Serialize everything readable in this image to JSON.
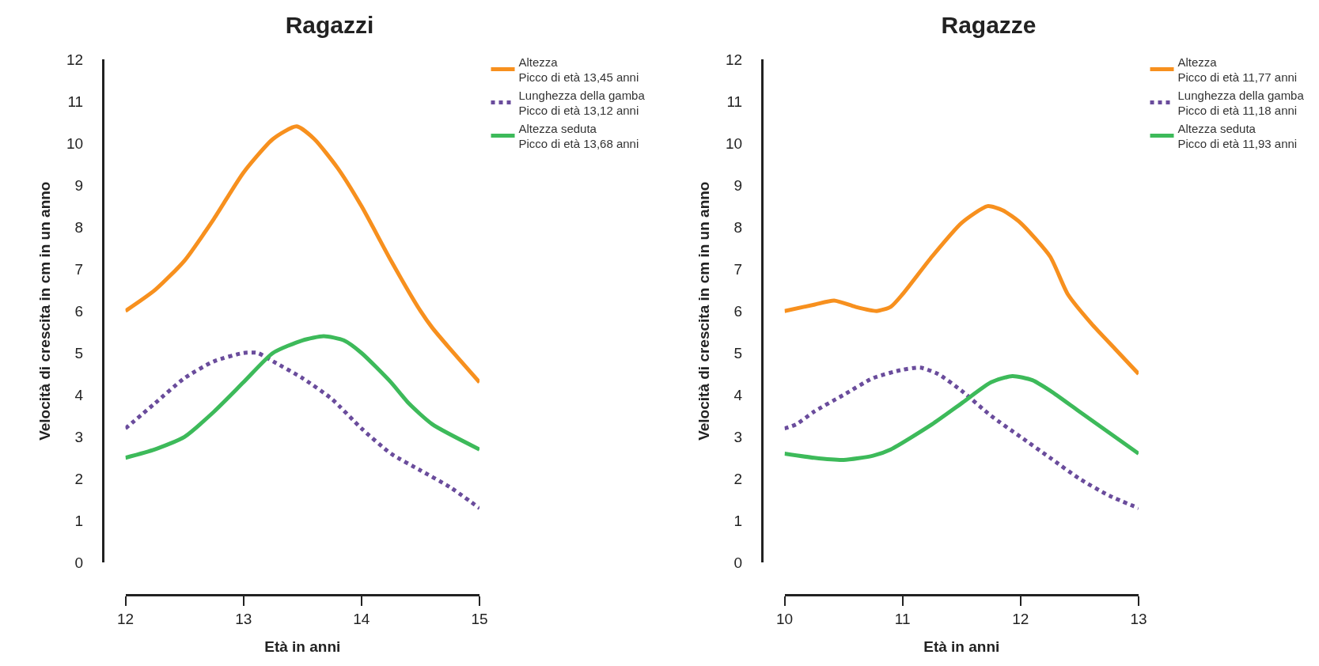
{
  "chart_data": [
    {
      "type": "line",
      "title": "Ragazzi",
      "xlabel": "Età in anni",
      "ylabel": "Velocità di crescita in cm in un anno",
      "xlim": [
        12,
        15
      ],
      "xticks": [
        12,
        13,
        14,
        15
      ],
      "ylim": [
        0,
        12
      ],
      "yticks": [
        0,
        1,
        2,
        3,
        4,
        5,
        6,
        7,
        8,
        9,
        10,
        11,
        12
      ],
      "grid": false,
      "legend": "top right",
      "marker": "none",
      "series": [
        {
          "name": "Altezza\nPicco di età 13,45 anni",
          "color": "#f7901e",
          "line_style": "solid",
          "x": [
            12,
            12.25,
            12.5,
            12.75,
            13,
            13.25,
            13.45,
            13.6,
            13.8,
            14,
            14.25,
            14.5,
            14.6,
            14.75,
            15
          ],
          "values": [
            6.0,
            6.5,
            7.2,
            8.2,
            9.3,
            10.1,
            10.4,
            10.1,
            9.4,
            8.5,
            7.2,
            6.0,
            5.6,
            5.1,
            4.3
          ]
        },
        {
          "name": "Lunghezza della gamba\nPicco di età 13,12 anni",
          "color": "#6a4c9c",
          "line_style": "dotted",
          "x": [
            12,
            12.25,
            12.5,
            12.75,
            13,
            13.12,
            13.25,
            13.5,
            13.75,
            14,
            14.25,
            14.5,
            14.75,
            15
          ],
          "values": [
            3.2,
            3.8,
            4.4,
            4.8,
            5.0,
            5.0,
            4.8,
            4.4,
            3.9,
            3.2,
            2.6,
            2.2,
            1.8,
            1.3
          ]
        },
        {
          "name": "Altezza seduta\nPicco di età 13,68 anni",
          "color": "#3dba5a",
          "line_style": "solid",
          "x": [
            12,
            12.25,
            12.5,
            12.75,
            13,
            13.25,
            13.5,
            13.68,
            13.85,
            14,
            14.25,
            14.4,
            14.6,
            15
          ],
          "values": [
            2.5,
            2.7,
            3.0,
            3.6,
            4.3,
            5.0,
            5.3,
            5.4,
            5.3,
            5.0,
            4.3,
            3.8,
            3.3,
            2.7
          ]
        }
      ]
    },
    {
      "type": "line",
      "title": "Ragazze",
      "xlabel": "Età in anni",
      "ylabel": "Velocità di crescita in cm in un anno",
      "xlim": [
        10,
        13
      ],
      "xticks": [
        10,
        11,
        12,
        13
      ],
      "ylim": [
        0,
        12
      ],
      "yticks": [
        0,
        1,
        2,
        3,
        4,
        5,
        6,
        7,
        8,
        9,
        10,
        11,
        12
      ],
      "grid": false,
      "legend": "top right",
      "marker": "none",
      "series": [
        {
          "name": "Altezza\nPicco di età 11,77 anni",
          "color": "#f7901e",
          "line_style": "solid",
          "x": [
            10,
            10.25,
            10.42,
            10.6,
            10.78,
            10.9,
            11,
            11.25,
            11.5,
            11.72,
            11.85,
            12,
            12.25,
            12.4,
            12.6,
            12.8,
            13
          ],
          "values": [
            6.0,
            6.15,
            6.25,
            6.1,
            6.0,
            6.1,
            6.4,
            7.3,
            8.1,
            8.5,
            8.4,
            8.1,
            7.3,
            6.4,
            5.7,
            5.1,
            4.5
          ]
        },
        {
          "name": "Lunghezza della gamba\nPicco di età 11,18 anni",
          "color": "#6a4c9c",
          "line_style": "dotted",
          "x": [
            10,
            10.1,
            10.25,
            10.5,
            10.75,
            11,
            11.15,
            11.3,
            11.5,
            11.75,
            12,
            12.25,
            12.5,
            12.75,
            13
          ],
          "values": [
            3.2,
            3.3,
            3.6,
            4.0,
            4.4,
            4.6,
            4.65,
            4.5,
            4.1,
            3.5,
            3.0,
            2.5,
            2.0,
            1.6,
            1.3
          ]
        },
        {
          "name": "Altezza seduta\nPicco di età 11,93 anni",
          "color": "#3dba5a",
          "line_style": "solid",
          "x": [
            10,
            10.25,
            10.5,
            10.75,
            10.9,
            11.25,
            11.5,
            11.75,
            11.93,
            12.1,
            12.25,
            12.5,
            12.75,
            13
          ],
          "values": [
            2.6,
            2.5,
            2.45,
            2.55,
            2.7,
            3.3,
            3.8,
            4.3,
            4.45,
            4.35,
            4.1,
            3.6,
            3.1,
            2.6
          ]
        }
      ]
    }
  ]
}
